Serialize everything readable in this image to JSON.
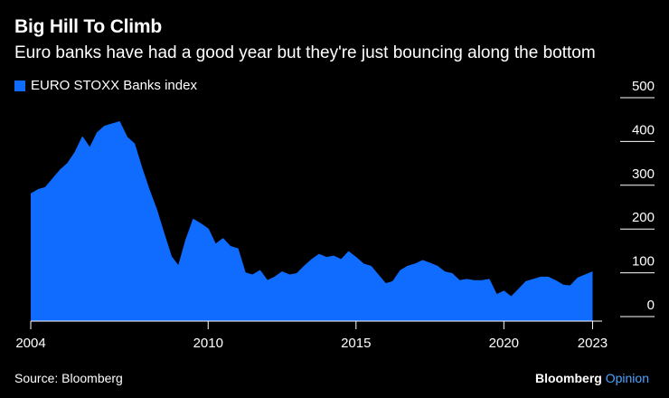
{
  "header": {
    "title": "Big Hill To Climb",
    "subtitle": "Euro banks have had a good year but they're just bouncing along the bottom"
  },
  "legend": {
    "label": "EURO STOXX Banks index"
  },
  "footer": {
    "source": "Source: Bloomberg",
    "brand_main": "Bloomberg",
    "brand_accent": "Opinion"
  },
  "colors": {
    "background": "#000000",
    "series": "#0f6cff",
    "text": "#ffffff",
    "brand_accent": "#4da3ff"
  },
  "chart_data": {
    "type": "area",
    "title": "Big Hill To Climb",
    "subtitle": "Euro banks have had a good year but they're just bouncing along the bottom",
    "xlabel": "",
    "ylabel": "",
    "xlim": [
      2004.0,
      2023.2
    ],
    "ylim": [
      0,
      500
    ],
    "xticks": [
      2004,
      2010,
      2015,
      2020,
      2023
    ],
    "xtick_labels": [
      "2004",
      "2010",
      "2015",
      "2020",
      "2023"
    ],
    "yticks": [
      0,
      100,
      200,
      300,
      400,
      500
    ],
    "ytick_labels": [
      "0",
      "100",
      "200",
      "300",
      "400",
      "500"
    ],
    "grid": false,
    "legend": "top-left",
    "series": [
      {
        "name": "EURO STOXX Banks index",
        "color": "#0f6cff",
        "x": [
          2004.0,
          2004.25,
          2004.5,
          2004.75,
          2005.0,
          2005.25,
          2005.5,
          2005.75,
          2006.0,
          2006.25,
          2006.5,
          2006.75,
          2007.0,
          2007.25,
          2007.5,
          2007.75,
          2008.0,
          2008.25,
          2008.5,
          2008.75,
          2009.0,
          2009.25,
          2009.5,
          2009.75,
          2010.0,
          2010.25,
          2010.5,
          2010.75,
          2011.0,
          2011.25,
          2011.5,
          2011.75,
          2012.0,
          2012.25,
          2012.5,
          2012.75,
          2013.0,
          2013.25,
          2013.5,
          2013.75,
          2014.0,
          2014.25,
          2014.5,
          2014.75,
          2015.0,
          2015.25,
          2015.5,
          2015.75,
          2016.0,
          2016.25,
          2016.5,
          2016.75,
          2017.0,
          2017.25,
          2017.5,
          2017.75,
          2018.0,
          2018.25,
          2018.5,
          2018.75,
          2019.0,
          2019.25,
          2019.5,
          2019.75,
          2020.0,
          2020.25,
          2020.5,
          2020.75,
          2021.0,
          2021.25,
          2021.5,
          2021.75,
          2022.0,
          2022.25,
          2022.5,
          2022.75,
          2023.0
        ],
        "values": [
          290,
          300,
          305,
          325,
          345,
          360,
          385,
          420,
          395,
          430,
          445,
          450,
          455,
          420,
          405,
          350,
          300,
          255,
          200,
          147,
          125,
          185,
          232,
          222,
          210,
          175,
          188,
          170,
          165,
          110,
          105,
          115,
          92,
          100,
          112,
          105,
          108,
          125,
          140,
          152,
          145,
          148,
          140,
          158,
          145,
          130,
          125,
          105,
          85,
          90,
          115,
          125,
          130,
          138,
          132,
          125,
          112,
          108,
          92,
          95,
          92,
          92,
          95,
          60,
          68,
          55,
          72,
          90,
          95,
          100,
          100,
          92,
          82,
          80,
          98,
          105,
          112
        ]
      }
    ]
  }
}
